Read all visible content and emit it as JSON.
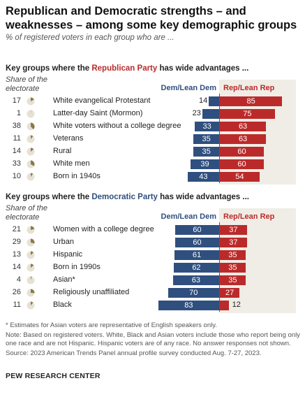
{
  "title": "Republican and Democratic strengths – and weaknesses – among some key demographic groups",
  "subtitle": "% of registered voters in each group who are ...",
  "share_label": "Share of the electorate",
  "dem_header": "Dem/Lean Dem",
  "rep_header": "Rep/Lean Rep",
  "colors": {
    "dem": "#2f4f7f",
    "rep": "#bb2a2a",
    "shade": "#f0ede6",
    "pie": "#8a7a4a"
  },
  "sections": [
    {
      "head_pre": "Key groups where the ",
      "head_party": "Republican Party",
      "head_post": " has wide advantages ...",
      "party": "rep"
    },
    {
      "head_pre": "Key groups where the ",
      "head_party": "Democratic Party",
      "head_post": " has wide advantages ...",
      "party": "dem"
    }
  ],
  "chart_data": [
    {
      "type": "bar",
      "title": "Key groups where the Republican Party has wide advantages ...",
      "series": [
        {
          "name": "Dem/Lean Dem",
          "values": [
            14,
            23,
            33,
            35,
            35,
            39,
            43
          ]
        },
        {
          "name": "Rep/Lean Rep",
          "values": [
            85,
            75,
            63,
            63,
            60,
            60,
            54
          ]
        }
      ],
      "categories": [
        "White evangelical Protestant",
        "Latter-day Saint (Mormon)",
        "White voters without a college degree",
        "Veterans",
        "Rural",
        "White men",
        "Born in 1940s"
      ],
      "share_of_electorate": [
        17,
        1,
        38,
        11,
        14,
        33,
        10
      ]
    },
    {
      "type": "bar",
      "title": "Key groups where the Democratic Party has wide advantages ...",
      "series": [
        {
          "name": "Dem/Lean Dem",
          "values": [
            60,
            60,
            61,
            62,
            63,
            70,
            83
          ]
        },
        {
          "name": "Rep/Lean Rep",
          "values": [
            37,
            37,
            35,
            35,
            35,
            27,
            12
          ]
        }
      ],
      "categories": [
        "Women with a college degree",
        "Urban",
        "Hispanic",
        "Born in 1990s",
        "Asian*",
        "Religiously unaffiliated",
        "Black"
      ],
      "share_of_electorate": [
        21,
        29,
        13,
        14,
        4,
        26,
        11
      ]
    }
  ],
  "notes": [
    "* Estimates for Asian voters are representative of English speakers only.",
    "Note: Based on registered voters. White, Black and Asian voters include those who report being only one race and are not Hispanic. Hispanic voters are of any race. No answer responses not shown.",
    "Source: 2023 American Trends Panel annual profile survey conducted Aug. 7-27, 2023."
  ],
  "footer": "PEW RESEARCH CENTER"
}
